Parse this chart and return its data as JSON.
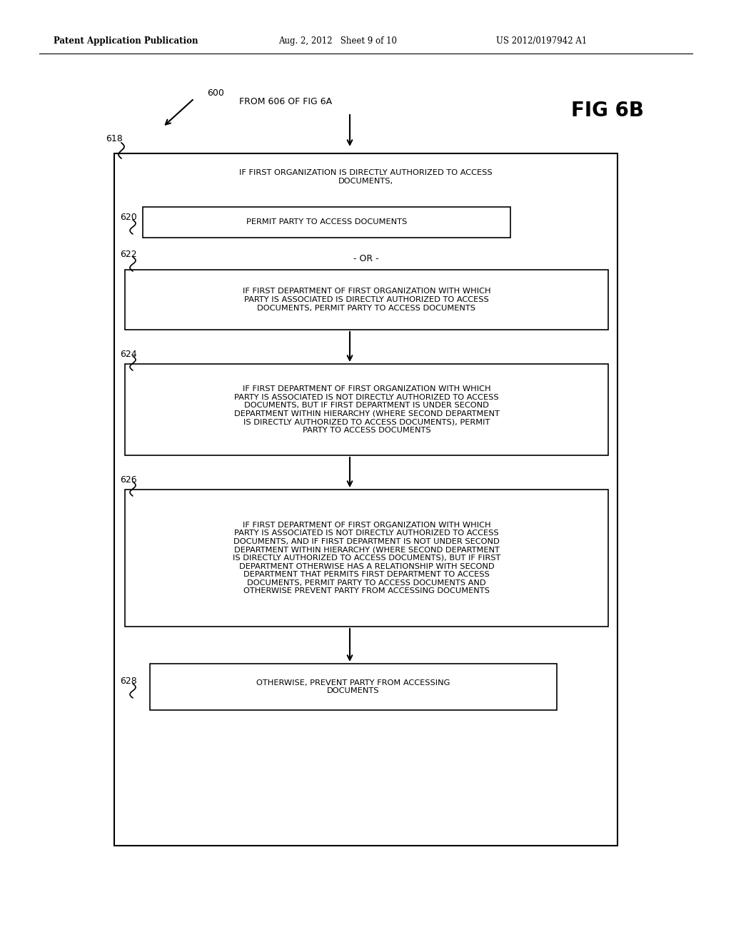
{
  "header_left": "Patent Application Publication",
  "header_mid": "Aug. 2, 2012   Sheet 9 of 10",
  "header_right": "US 2012/0197942 A1",
  "fig_label": "FIG 6B",
  "from_label": "FROM 606 OF FIG 6A",
  "ref_600": "600",
  "ref_618": "618",
  "ref_620": "620",
  "ref_622": "622",
  "ref_624": "624",
  "ref_626": "626",
  "ref_628": "628",
  "outer_box_text": "IF FIRST ORGANIZATION IS DIRECTLY AUTHORIZED TO ACCESS\nDOCUMENTS,",
  "box620_text": "PERMIT PARTY TO ACCESS DOCUMENTS",
  "or_text": "- OR -",
  "box622_text": "IF FIRST DEPARTMENT OF FIRST ORGANIZATION WITH WHICH\nPARTY IS ASSOCIATED IS DIRECTLY AUTHORIZED TO ACCESS\nDOCUMENTS, PERMIT PARTY TO ACCESS DOCUMENTS",
  "box624_text": "IF FIRST DEPARTMENT OF FIRST ORGANIZATION WITH WHICH\nPARTY IS ASSOCIATED IS NOT DIRECTLY AUTHORIZED TO ACCESS\nDOCUMENTS, BUT IF FIRST DEPARTMENT IS UNDER SECOND\nDEPARTMENT WITHIN HIERARCHY (WHERE SECOND DEPARTMENT\nIS DIRECTLY AUTHORIZED TO ACCESS DOCUMENTS), PERMIT\nPARTY TO ACCESS DOCUMENTS",
  "box626_text": "IF FIRST DEPARTMENT OF FIRST ORGANIZATION WITH WHICH\nPARTY IS ASSOCIATED IS NOT DIRECTLY AUTHORIZED TO ACCESS\nDOCUMENTS, AND IF FIRST DEPARTMENT IS NOT UNDER SECOND\nDEPARTMENT WITHIN HIERARCHY (WHERE SECOND DEPARTMENT\nIS DIRECTLY AUTHORIZED TO ACCESS DOCUMENTS), BUT IF FIRST\nDEPARTMENT OTHERWISE HAS A RELATIONSHIP WITH SECOND\nDEPARTMENT THAT PERMITS FIRST DEPARTMENT TO ACCESS\nDOCUMENTS, PERMIT PARTY TO ACCESS DOCUMENTS AND\nOTHERWISE PREVENT PARTY FROM ACCESSING DOCUMENTS",
  "box628_text": "OTHERWISE, PREVENT PARTY FROM ACCESSING\nDOCUMENTS",
  "bg_color": "#ffffff",
  "box_edge_color": "#000000",
  "text_color": "#000000",
  "arrow_color": "#000000"
}
